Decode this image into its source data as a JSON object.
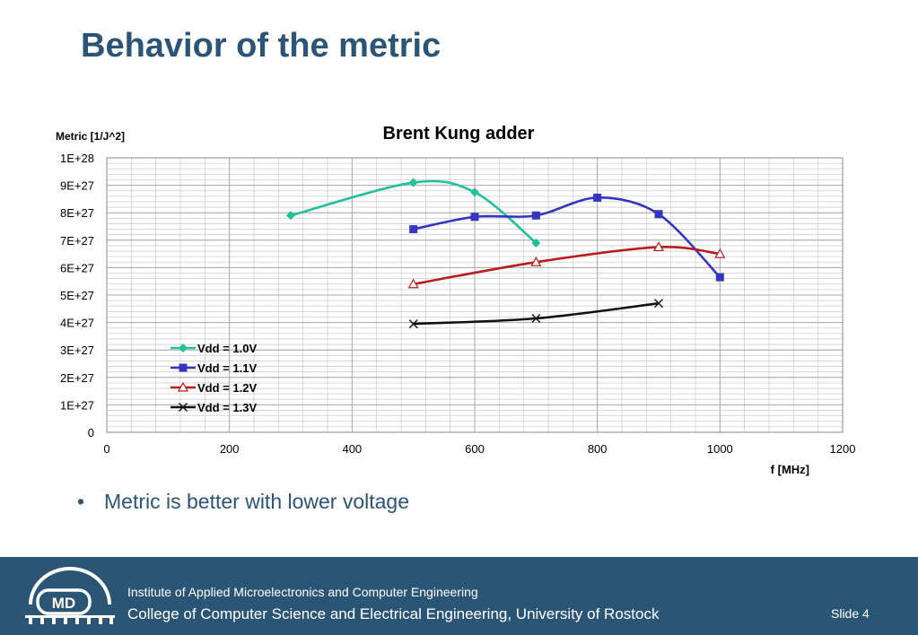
{
  "slide": {
    "title": "Behavior of the metric",
    "bullet": "Metric is better with lower voltage",
    "footer_line1": "Institute of Applied Microelectronics and Computer Engineering",
    "footer_line2": "College of Computer Science and Electrical Engineering, University of Rostock",
    "slide_number": "Slide 4",
    "logo_text": "MD"
  },
  "colors": {
    "title": "#2b5476",
    "footer_bg": "#2a5575",
    "grid": "#cfcfcf"
  },
  "chart_data": {
    "type": "scatter",
    "title": "Brent Kung adder",
    "xlabel": "f [MHz]",
    "ylabel": "Metric [1/J^2]",
    "xlim": [
      0,
      1200
    ],
    "ylim": [
      0,
      1e+28
    ],
    "x_ticks": [
      0,
      200,
      400,
      600,
      800,
      1000,
      1200
    ],
    "x_tick_labels": [
      "0",
      "200",
      "400",
      "600",
      "800",
      "1000",
      "1200"
    ],
    "y_ticks": [
      0,
      1e+27,
      2e+27,
      3e+27,
      4e+27,
      5e+27,
      6e+27,
      7e+27,
      8e+27,
      9e+27,
      1e+28
    ],
    "y_tick_labels": [
      "0",
      "1E+27",
      "2E+27",
      "3E+27",
      "4E+27",
      "5E+27",
      "6E+27",
      "7E+27",
      "8E+27",
      "9E+27",
      "1E+28"
    ],
    "grid": true,
    "smooth_lines": true,
    "legend_position": "inside-lower-left",
    "series": [
      {
        "name": "Vdd = 1.0V",
        "color": "#20c09c",
        "marker": "diamond",
        "x": [
          300,
          500,
          600,
          700
        ],
        "y": [
          7.9e+27,
          9.1e+27,
          8.75e+27,
          6.9e+27
        ]
      },
      {
        "name": "Vdd = 1.1V",
        "color": "#3535c0",
        "marker": "square",
        "x": [
          500,
          600,
          700,
          800,
          900,
          1000
        ],
        "y": [
          7.4e+27,
          7.85e+27,
          7.9e+27,
          8.55e+27,
          7.95e+27,
          5.65e+27
        ]
      },
      {
        "name": "Vdd = 1.2V",
        "color": "#b81d1d",
        "marker": "triangle",
        "x": [
          500,
          700,
          900,
          1000
        ],
        "y": [
          5.4e+27,
          6.2e+27,
          6.75e+27,
          6.5e+27
        ]
      },
      {
        "name": "Vdd = 1.3V",
        "color": "#111111",
        "marker": "x",
        "x": [
          500,
          700,
          900
        ],
        "y": [
          3.95e+27,
          4.15e+27,
          4.7e+27
        ]
      }
    ]
  }
}
